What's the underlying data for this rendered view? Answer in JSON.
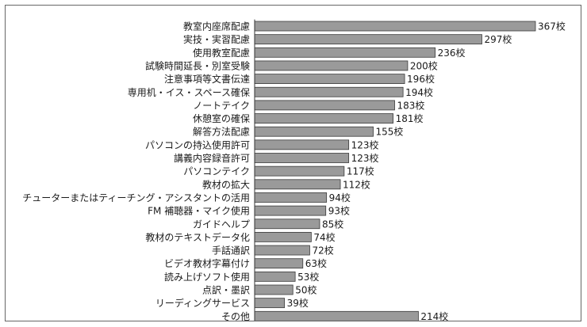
{
  "chart_data": {
    "type": "bar",
    "orientation": "horizontal",
    "categories": [
      "教室内座席配慮",
      "実技・実習配慮",
      "使用教室配慮",
      "試験時間延長・別室受験",
      "注意事項等文書伝達",
      "専用机・イス・スペース確保",
      "ノートテイク",
      "休憩室の確保",
      "解答方法配慮",
      "パソコンの持込使用許可",
      "講義内容録音許可",
      "パソコンテイク",
      "教材の拡大",
      "チューターまたはティーチング・アシスタントの活用",
      "FM 補聴器・マイク使用",
      "ガイドヘルプ",
      "教材のテキストデータ化",
      "手話通訳",
      "ビデオ教材字幕付け",
      "読み上げソフト使用",
      "点訳・墨訳",
      "リーディングサービス",
      "その他"
    ],
    "values": [
      367,
      297,
      236,
      200,
      196,
      194,
      183,
      181,
      155,
      123,
      123,
      117,
      112,
      94,
      93,
      85,
      74,
      72,
      63,
      53,
      50,
      39,
      214
    ],
    "value_labels": [
      "367校",
      "297校",
      "236校",
      "200校",
      "196校",
      "194校",
      "183校",
      "181校",
      "155校",
      "123校",
      "123校",
      "117校",
      "112校",
      "94校",
      "93校",
      "85校",
      "74校",
      "72校",
      "63校",
      "53校",
      "50校",
      "39校",
      "214校"
    ],
    "xlim": [
      0,
      367
    ],
    "grid": false,
    "title": "",
    "xlabel": "",
    "ylabel": ""
  },
  "colors": {
    "bar_fill": "#9a9a9a",
    "bar_stroke": "#3a3a3a",
    "frame": "#666666"
  }
}
